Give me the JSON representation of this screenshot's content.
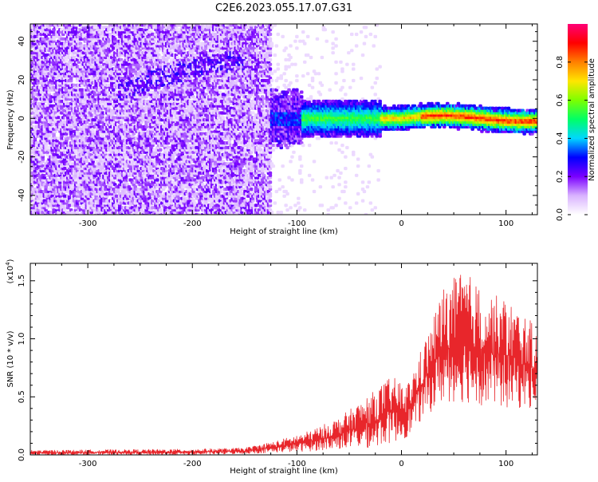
{
  "title": "C2E6.2023.055.17.07.G31",
  "chart_data": [
    {
      "type": "heatmap",
      "title": "C2E6.2023.055.17.07.G31",
      "xlabel": "Height of straight line (km)",
      "ylabel": "Frequency (Hz)",
      "xlim": [
        -355,
        130
      ],
      "ylim": [
        -50,
        49
      ],
      "xticks": [
        -300,
        -200,
        -100,
        0,
        100
      ],
      "yticks": [
        -40,
        -20,
        0,
        20,
        40
      ],
      "colorbar": {
        "label": "Normalized spectral amplitude",
        "range": [
          0,
          1
        ],
        "ticks": [
          "0.0",
          "0.2",
          "0.4",
          "0.6",
          "0.8"
        ],
        "colormap": [
          "#ffffff",
          "#d9b3ff",
          "#7a00ff",
          "#0000ff",
          "#00d7ff",
          "#00ff66",
          "#7dff00",
          "#ffe600",
          "#ff8000",
          "#ff0000",
          "#ff0077"
        ]
      },
      "features": {
        "noise_floor_until_km": -125,
        "signal_band_center_hz": 0,
        "signal_band_halfwidth_hz": 5
      }
    },
    {
      "type": "line",
      "xlabel": "Height of straight line (km)",
      "ylabel": "SNR (10 * v/v)",
      "scale_label": "(x10",
      "scale_exponent": "4",
      "xlim": [
        -355,
        130
      ],
      "ylim": [
        0,
        1.65
      ],
      "xticks": [
        -300,
        -200,
        -100,
        0,
        100
      ],
      "yticks": [
        "0.0",
        "0.5",
        "1.0",
        "1.5"
      ],
      "series": [
        {
          "color": "#e8262b",
          "envelope": [
            {
              "x": -355,
              "low": 0.0,
              "high": 0.04
            },
            {
              "x": -200,
              "low": 0.0,
              "high": 0.05
            },
            {
              "x": -150,
              "low": 0.01,
              "high": 0.06
            },
            {
              "x": -120,
              "low": 0.02,
              "high": 0.12
            },
            {
              "x": -90,
              "low": 0.03,
              "high": 0.2
            },
            {
              "x": -60,
              "low": 0.05,
              "high": 0.32
            },
            {
              "x": -30,
              "low": 0.06,
              "high": 0.52
            },
            {
              "x": -10,
              "low": 0.1,
              "high": 0.68
            },
            {
              "x": 5,
              "low": 0.15,
              "high": 0.6
            },
            {
              "x": 25,
              "low": 0.35,
              "high": 1.05
            },
            {
              "x": 40,
              "low": 0.45,
              "high": 1.45
            },
            {
              "x": 60,
              "low": 0.45,
              "high": 1.6
            },
            {
              "x": 80,
              "low": 0.42,
              "high": 1.4
            },
            {
              "x": 100,
              "low": 0.4,
              "high": 1.35
            },
            {
              "x": 130,
              "low": 0.4,
              "high": 1.1
            }
          ]
        }
      ]
    }
  ]
}
